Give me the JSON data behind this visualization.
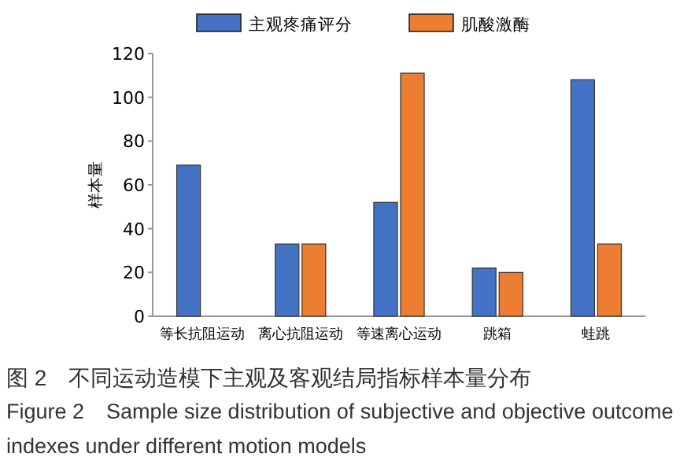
{
  "chart_data": {
    "type": "bar",
    "ylabel": "样本量",
    "categories": [
      "等长抗阻运动",
      "离心抗阻运动",
      "等速离心运动",
      "跳箱",
      "蛙跳"
    ],
    "series": [
      {
        "name": "主观疼痛评分",
        "color": "#4472c4",
        "values": [
          69,
          33,
          52,
          22,
          108
        ]
      },
      {
        "name": "肌酸激酶",
        "color": "#ed7d31",
        "values": [
          null,
          33,
          111,
          20,
          33
        ]
      }
    ],
    "ylim": [
      0,
      120
    ],
    "yticks": [
      0,
      20,
      40,
      60,
      80,
      100,
      120
    ],
    "legend": "top",
    "annotations": [
      "图 2　不同运动造模下主观及客观结局指标样本量分布",
      "Figure 2　Sample size distribution of subjective and objective outcome indexes under different motion models"
    ]
  }
}
